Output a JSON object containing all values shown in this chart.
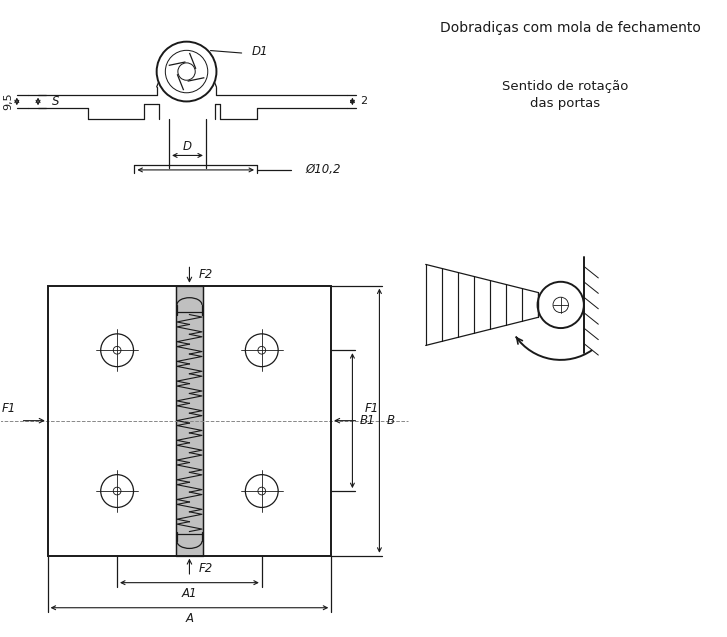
{
  "title_right": "Dobradiças com mola de fechamento",
  "subtitle_right1": "Sentido de rotação",
  "subtitle_right2": "das portas",
  "bg_color": "#ffffff",
  "line_color": "#1a1a1a",
  "dim_color": "#1a1a1a"
}
